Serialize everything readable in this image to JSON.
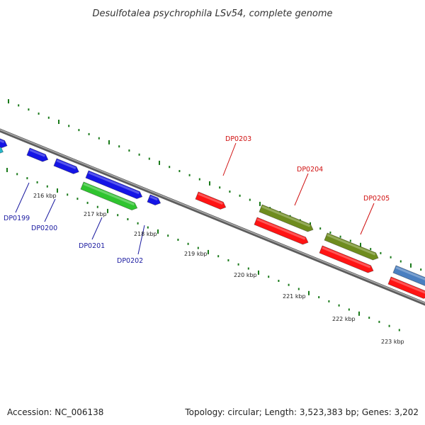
{
  "title": "Desulfotalea psychrophila LSv54, complete genome",
  "footer": {
    "accession": "Accession: NC_006138",
    "summary": "Topology: circular; Length: 3,523,383 bp; Genes: 3,202"
  },
  "colors": {
    "backbone": "#7a7a7a",
    "tick": "#1a7a1a",
    "blue_gene": "#1515e6",
    "green_gene": "#2fc42f",
    "red_gene": "#ff1414",
    "olive_gene": "#6e8c1e",
    "steel_gene": "#4a7fc0",
    "cyan_gene": "#27b7c9",
    "label_blue": "#1a1aa0",
    "label_red": "#d01010"
  },
  "scale": {
    "ticks": [
      {
        "label": "216 kbp"
      },
      {
        "label": "217 kbp"
      },
      {
        "label": "218 kbp"
      },
      {
        "label": "219 kbp"
      },
      {
        "label": "220 kbp"
      },
      {
        "label": "221 kbp"
      },
      {
        "label": "222 kbp"
      },
      {
        "label": "223 kbp"
      }
    ]
  },
  "gene_labels": [
    {
      "text": "DP0199",
      "strand": "minus"
    },
    {
      "text": "DP0200",
      "strand": "minus"
    },
    {
      "text": "DP0201",
      "strand": "minus"
    },
    {
      "text": "DP0202",
      "strand": "minus"
    },
    {
      "text": "DP0203",
      "strand": "plus"
    },
    {
      "text": "DP0204",
      "strand": "plus"
    },
    {
      "text": "DP0205",
      "strand": "plus"
    }
  ]
}
